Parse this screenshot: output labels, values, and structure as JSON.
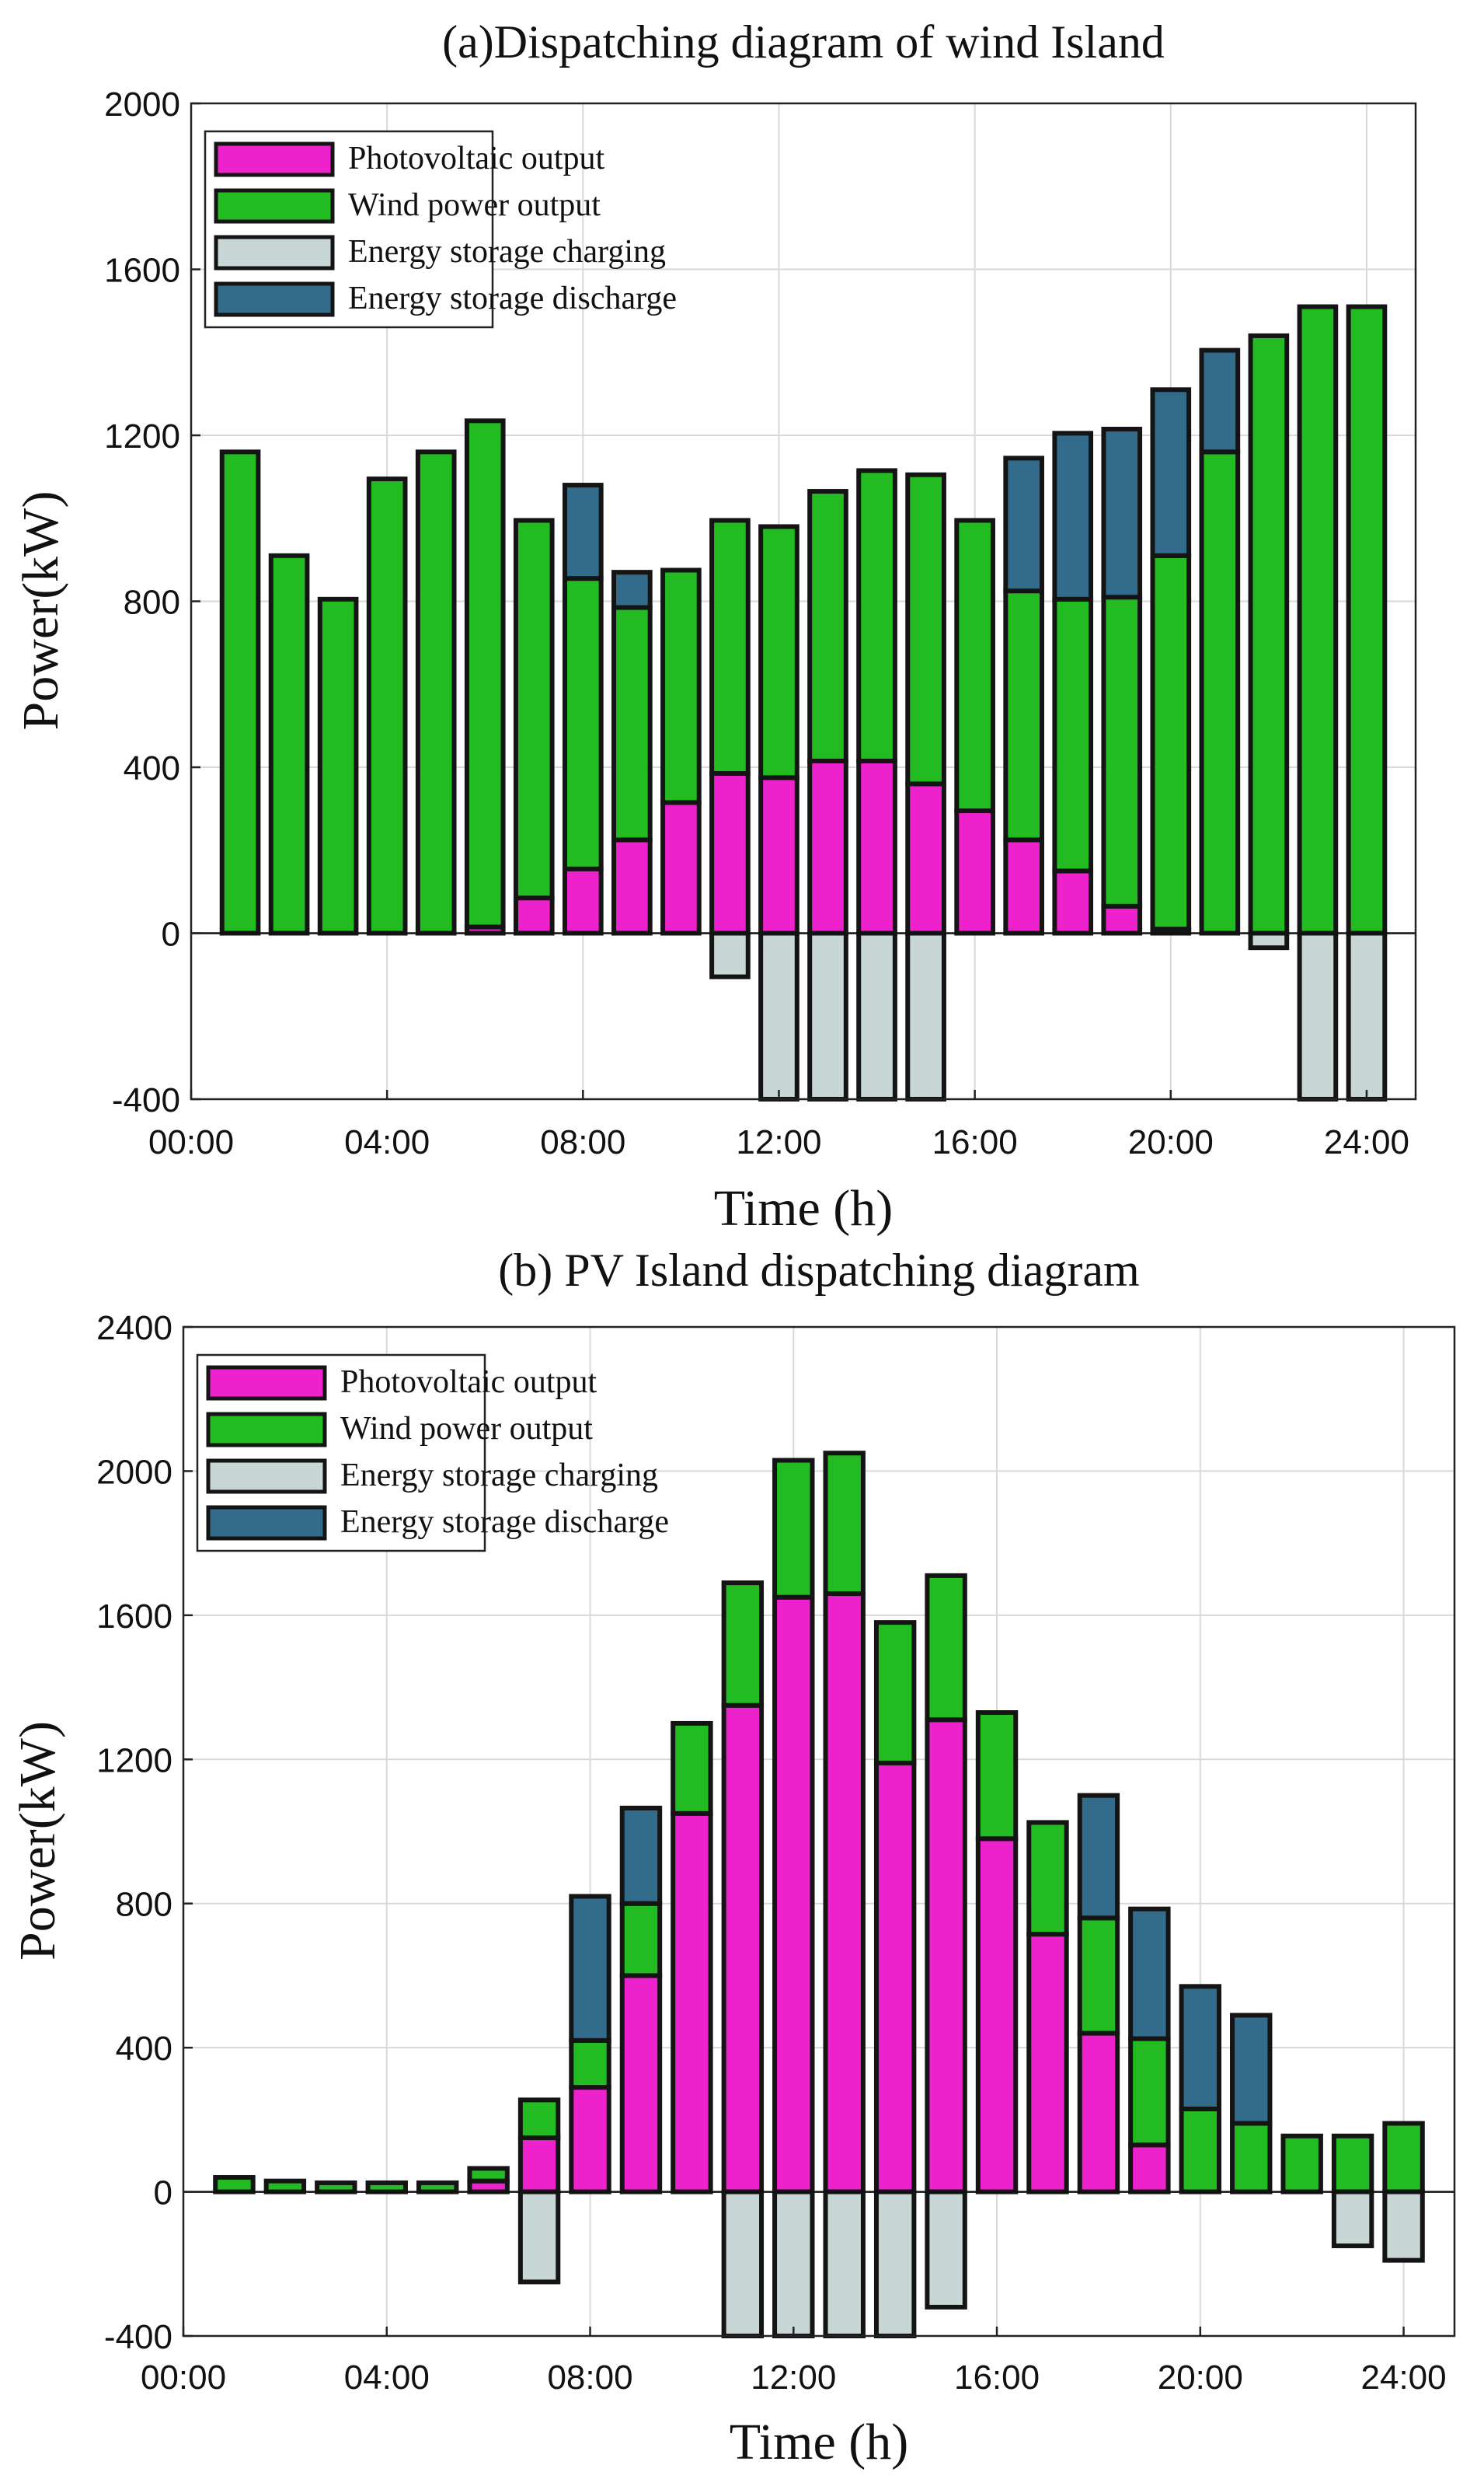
{
  "chart_data": [
    {
      "type": "bar",
      "stacked": true,
      "title": "(a)Dispatching diagram of wind Island",
      "xlabel": "Time (h)",
      "ylabel": "Power(kW)",
      "ylim": [
        -400,
        2000
      ],
      "yticks": [
        "-400",
        "0",
        "400",
        "800",
        "1200",
        "1600",
        "2000"
      ],
      "yticks_values": [
        -400,
        0,
        400,
        800,
        1200,
        1600,
        2000
      ],
      "xlim": [
        "00:00",
        "25:00"
      ],
      "xticks": [
        "00:00",
        "04:00",
        "08:00",
        "12:00",
        "16:00",
        "20:00",
        "24:00"
      ],
      "x": [
        "01:00",
        "02:00",
        "03:00",
        "04:00",
        "05:00",
        "06:00",
        "07:00",
        "08:00",
        "09:00",
        "10:00",
        "11:00",
        "12:00",
        "13:00",
        "14:00",
        "15:00",
        "16:00",
        "17:00",
        "18:00",
        "19:00",
        "20:00",
        "21:00",
        "22:00",
        "23:00",
        "24:00"
      ],
      "grid": true,
      "legend_position": "top-left",
      "series": [
        {
          "name": "Photovoltaic output",
          "color": "#ee22cc",
          "values": [
            0,
            0,
            0,
            0,
            0,
            15,
            85,
            155,
            225,
            315,
            385,
            375,
            415,
            415,
            360,
            295,
            225,
            150,
            65,
            10,
            0,
            0,
            0,
            0
          ]
        },
        {
          "name": "Wind power output",
          "color": "#22bb22",
          "values": [
            1160,
            910,
            805,
            1095,
            1160,
            1220,
            910,
            700,
            560,
            560,
            610,
            605,
            650,
            700,
            745,
            700,
            600,
            655,
            745,
            900,
            1160,
            1440,
            1510,
            1510
          ]
        },
        {
          "name": "Energy storage charging",
          "color": "#c8d6d6",
          "values": [
            0,
            0,
            0,
            0,
            0,
            0,
            0,
            0,
            0,
            0,
            -105,
            -400,
            -400,
            -400,
            -400,
            0,
            0,
            0,
            0,
            0,
            0,
            -35,
            -400,
            -400
          ]
        },
        {
          "name": "Energy storage discharge",
          "color": "#336b8a",
          "values": [
            0,
            0,
            0,
            0,
            0,
            0,
            0,
            225,
            85,
            0,
            0,
            0,
            0,
            0,
            0,
            0,
            320,
            400,
            405,
            400,
            245,
            0,
            0,
            0
          ]
        }
      ]
    },
    {
      "type": "bar",
      "stacked": true,
      "title": "(b) PV Island dispatching diagram",
      "xlabel": "Time (h)",
      "ylabel": "Power(kW)",
      "ylim": [
        -400,
        2400
      ],
      "yticks": [
        "-400",
        "0",
        "400",
        "800",
        "1200",
        "1600",
        "2000",
        "2400"
      ],
      "yticks_values": [
        -400,
        0,
        400,
        800,
        1200,
        1600,
        2000,
        2400
      ],
      "xlim": [
        "00:00",
        "25:00"
      ],
      "xticks": [
        "00:00",
        "04:00",
        "08:00",
        "12:00",
        "16:00",
        "20:00",
        "24:00"
      ],
      "x": [
        "01:00",
        "02:00",
        "03:00",
        "04:00",
        "05:00",
        "06:00",
        "07:00",
        "08:00",
        "09:00",
        "10:00",
        "11:00",
        "12:00",
        "13:00",
        "14:00",
        "15:00",
        "16:00",
        "17:00",
        "18:00",
        "19:00",
        "20:00",
        "21:00",
        "22:00",
        "23:00",
        "24:00"
      ],
      "grid": true,
      "legend_position": "top-left",
      "series": [
        {
          "name": "Photovoltaic output",
          "color": "#ee22cc",
          "values": [
            0,
            0,
            0,
            0,
            0,
            30,
            150,
            290,
            600,
            1050,
            1350,
            1650,
            1660,
            1190,
            1310,
            980,
            715,
            440,
            130,
            0,
            0,
            0,
            0,
            0
          ]
        },
        {
          "name": "Wind power output",
          "color": "#22bb22",
          "values": [
            40,
            30,
            25,
            25,
            25,
            35,
            105,
            130,
            200,
            250,
            340,
            380,
            390,
            390,
            400,
            350,
            310,
            320,
            295,
            230,
            190,
            155,
            155,
            190
          ]
        },
        {
          "name": "Energy storage charging",
          "color": "#c8d6d6",
          "values": [
            0,
            0,
            0,
            0,
            0,
            0,
            -250,
            0,
            0,
            0,
            -400,
            -400,
            -400,
            -400,
            -320,
            0,
            0,
            0,
            0,
            0,
            0,
            0,
            -150,
            -190
          ]
        },
        {
          "name": "Energy storage discharge",
          "color": "#336b8a",
          "values": [
            0,
            0,
            0,
            0,
            0,
            0,
            0,
            400,
            265,
            0,
            0,
            0,
            0,
            0,
            0,
            0,
            0,
            340,
            360,
            340,
            300,
            0,
            0,
            0
          ]
        }
      ]
    }
  ]
}
